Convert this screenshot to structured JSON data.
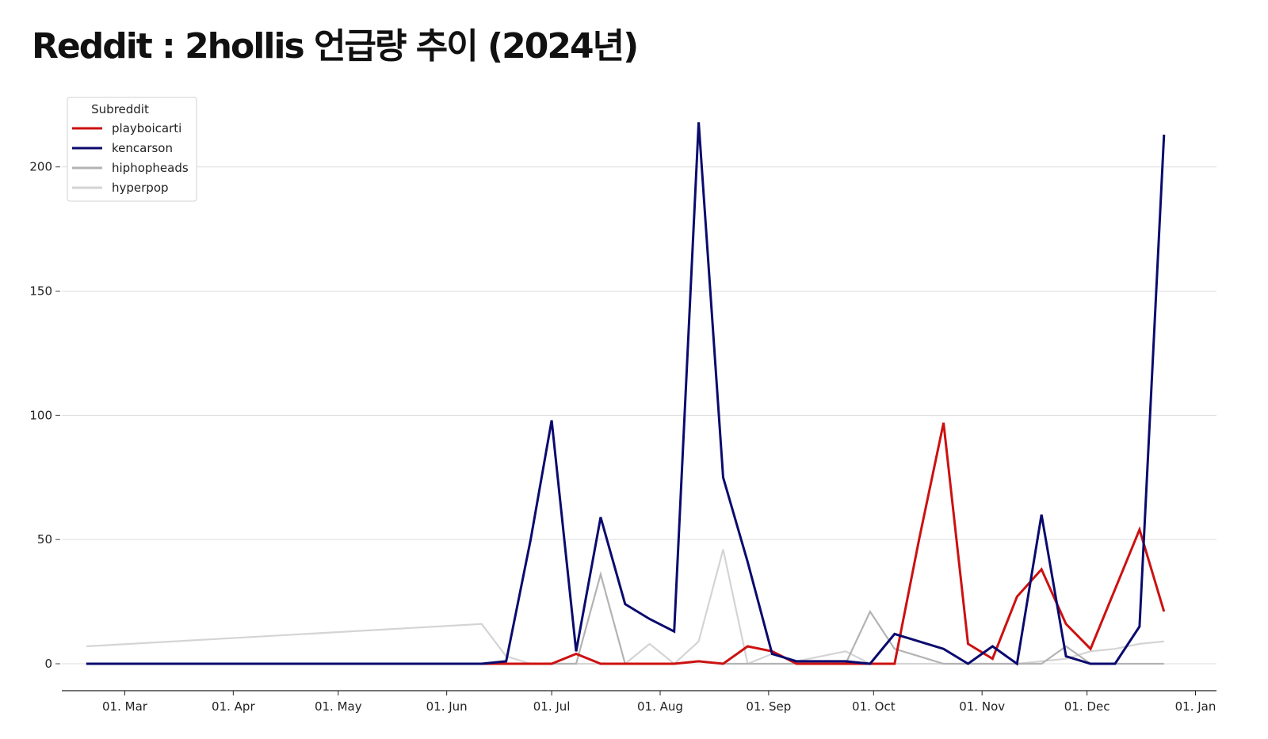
{
  "chart_data": {
    "type": "line",
    "title": "Reddit : 2hollis 언급량 추이 (2024년)",
    "xlabel": "",
    "ylabel": "",
    "x_tick_labels": [
      {
        "date": "2024-03-01",
        "label": "01. Mar"
      },
      {
        "date": "2024-04-01",
        "label": "01. Apr"
      },
      {
        "date": "2024-05-01",
        "label": "01. May"
      },
      {
        "date": "2024-06-01",
        "label": "01. Jun"
      },
      {
        "date": "2024-07-01",
        "label": "01. Jul"
      },
      {
        "date": "2024-08-01",
        "label": "01. Aug"
      },
      {
        "date": "2024-09-01",
        "label": "01. Sep"
      },
      {
        "date": "2024-10-01",
        "label": "01. Oct"
      },
      {
        "date": "2024-11-01",
        "label": "01. Nov"
      },
      {
        "date": "2024-12-01",
        "label": "01. Dec"
      },
      {
        "date": "2025-01-01",
        "label": "01. Jan"
      }
    ],
    "y_ticks": [
      0,
      50,
      100,
      150,
      200
    ],
    "ylim": [
      0,
      220
    ],
    "xlim": [
      "2024-02-12",
      "2025-01-07"
    ],
    "grid": "horizontal",
    "legend": {
      "title": "Subreddit",
      "placement": "top-left"
    },
    "x": [
      "2024-02-19",
      "2024-06-11",
      "2024-06-18",
      "2024-06-25",
      "2024-07-01",
      "2024-07-08",
      "2024-07-15",
      "2024-07-22",
      "2024-07-29",
      "2024-08-05",
      "2024-08-12",
      "2024-08-19",
      "2024-08-26",
      "2024-09-02",
      "2024-09-09",
      "2024-09-16",
      "2024-09-23",
      "2024-09-30",
      "2024-10-07",
      "2024-10-14",
      "2024-10-21",
      "2024-10-28",
      "2024-11-04",
      "2024-11-11",
      "2024-11-18",
      "2024-11-25",
      "2024-12-02",
      "2024-12-09",
      "2024-12-16",
      "2024-12-23"
    ],
    "series": [
      {
        "name": "playboicarti",
        "color": "#cc1111",
        "values": [
          0,
          0,
          0,
          0,
          0,
          4,
          0,
          0,
          0,
          0,
          1,
          0,
          7,
          5,
          0,
          0,
          0,
          0,
          0,
          50,
          97,
          8,
          2,
          27,
          38,
          16,
          6,
          30,
          54,
          21
        ]
      },
      {
        "name": "kencarson",
        "color": "#0a0a6e",
        "values": [
          0,
          0,
          1,
          50,
          98,
          5,
          59,
          24,
          18,
          13,
          218,
          75,
          41,
          4,
          1,
          1,
          1,
          0,
          12,
          9,
          6,
          0,
          7,
          0,
          60,
          3,
          0,
          0,
          15,
          213
        ]
      },
      {
        "name": "hiphopheads",
        "color": "#b3b3b3",
        "values": [
          0,
          0,
          0,
          0,
          0,
          0,
          36,
          0,
          0,
          0,
          1,
          0,
          0,
          0,
          0,
          0,
          0,
          21,
          6,
          3,
          0,
          0,
          0,
          0,
          0,
          7,
          0,
          0,
          0,
          0
        ]
      },
      {
        "name": "hyperpop",
        "color": "#d4d4d4",
        "values": [
          7,
          16,
          3,
          0,
          0,
          0,
          0,
          0,
          8,
          0,
          9,
          46,
          0,
          4,
          1,
          3,
          5,
          0,
          0,
          0,
          0,
          0,
          0,
          0,
          1,
          2,
          5,
          6,
          8,
          9
        ]
      }
    ]
  }
}
